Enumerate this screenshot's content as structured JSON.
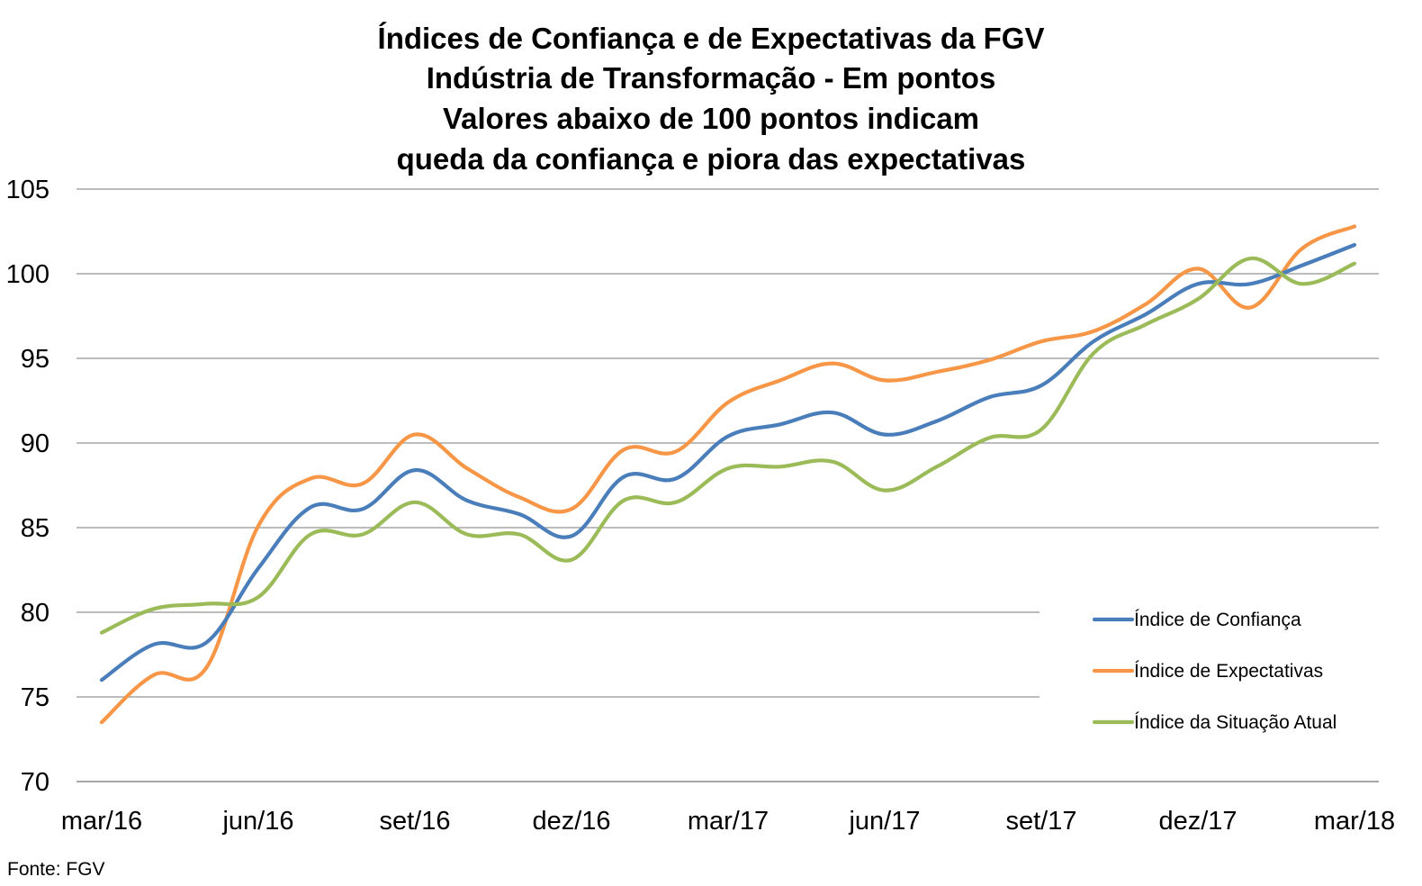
{
  "chart_data": {
    "type": "line",
    "title_lines": [
      "Índices de Confiança e de Expectativas da FGV",
      "Indústria de Transformação - Em pontos",
      "Valores abaixo de 100 pontos indicam",
      "queda da confiança e piora das expectativas"
    ],
    "x_tick_labels": [
      "mar/16",
      "jun/16",
      "set/16",
      "dez/16",
      "mar/17",
      "jun/17",
      "set/17",
      "dez/17",
      "mar/18"
    ],
    "ylim": [
      70,
      105
    ],
    "y_ticks": [
      70,
      75,
      80,
      85,
      90,
      95,
      100,
      105
    ],
    "grid": "horizontal",
    "legend_position": "bottom-right",
    "source": "Fonte: FGV",
    "x": [
      "mar/16",
      "abr/16",
      "mai/16",
      "jun/16",
      "jul/16",
      "ago/16",
      "set/16",
      "out/16",
      "nov/16",
      "dez/16",
      "jan/17",
      "fev/17",
      "mar/17",
      "abr/17",
      "mai/17",
      "jun/17",
      "jul/17",
      "ago/17",
      "set/17",
      "out/17",
      "nov/17",
      "dez/17",
      "jan/18",
      "fev/18",
      "mar/18"
    ],
    "series": [
      {
        "name": "Índice de Confiança",
        "color": "#4a7ebb",
        "values": [
          76.0,
          78.1,
          78.2,
          82.6,
          86.2,
          86.1,
          88.4,
          86.6,
          85.8,
          84.5,
          88.0,
          87.9,
          90.4,
          91.1,
          91.8,
          90.5,
          91.3,
          92.7,
          93.4,
          96.0,
          97.6,
          99.4,
          99.4,
          100.5,
          101.7
        ]
      },
      {
        "name": "Índice de Expectativas",
        "color": "#f79646",
        "values": [
          73.5,
          76.3,
          76.7,
          85.1,
          87.9,
          87.6,
          90.5,
          88.5,
          86.8,
          86.1,
          89.6,
          89.5,
          92.4,
          93.7,
          94.7,
          93.7,
          94.2,
          94.9,
          96.0,
          96.6,
          98.2,
          100.3,
          98.0,
          101.5,
          102.8
        ]
      },
      {
        "name": "Índice da Situação Atual",
        "color": "#9bbb59",
        "values": [
          78.8,
          80.2,
          80.5,
          80.9,
          84.6,
          84.6,
          86.5,
          84.6,
          84.6,
          83.1,
          86.6,
          86.5,
          88.5,
          88.6,
          88.9,
          87.2,
          88.6,
          90.3,
          90.8,
          95.3,
          97.0,
          98.5,
          100.9,
          99.4,
          100.6
        ]
      }
    ]
  }
}
